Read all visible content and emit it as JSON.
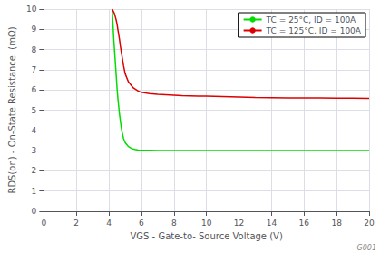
{
  "chart_data": {
    "type": "line",
    "x_label": "VGS - Gate-to- Source Voltage (V)",
    "y_label": "RDS(on) - On-State Resistance  (mΩ)",
    "annotations": [
      "G001"
    ],
    "xlim": [
      0,
      20
    ],
    "ylim": [
      0,
      10
    ],
    "xticks": [
      0,
      2,
      4,
      6,
      8,
      10,
      12,
      14,
      16,
      18,
      20
    ],
    "yticks": [
      0,
      1,
      2,
      3,
      4,
      5,
      6,
      7,
      8,
      9,
      10
    ],
    "grid": true,
    "legend": "upper right",
    "series": [
      {
        "name": "TC = 25°C, ID = 100A",
        "color": "#00dd00",
        "x": [
          4.2,
          4.3,
          4.35,
          4.4,
          4.45,
          4.5,
          4.55,
          4.6,
          4.65,
          4.7,
          4.75,
          4.8,
          4.9,
          5.0,
          5.1,
          5.2,
          5.4,
          5.6,
          5.8,
          6.0,
          6.5,
          7.0,
          7.5,
          8.0,
          9.0,
          10.0,
          11.0,
          12.0,
          13.0,
          14.0,
          15.0,
          16.0,
          17.0,
          18.0,
          19.0,
          20.0
        ],
        "values": [
          10.0,
          8.5,
          7.9,
          7.3,
          6.7,
          6.1,
          5.6,
          5.2,
          4.8,
          4.5,
          4.2,
          3.95,
          3.6,
          3.4,
          3.3,
          3.2,
          3.1,
          3.06,
          3.03,
          3.02,
          3.02,
          3.01,
          3.01,
          3.01,
          3.01,
          3.01,
          3.01,
          3.01,
          3.01,
          3.01,
          3.01,
          3.01,
          3.01,
          3.01,
          3.01,
          3.01
        ]
      },
      {
        "name": "TC = 125°C, ID = 100A",
        "color": "#dd0000",
        "x": [
          4.2,
          4.3,
          4.35,
          4.4,
          4.45,
          4.5,
          4.55,
          4.6,
          4.65,
          4.7,
          4.8,
          4.9,
          5.0,
          5.2,
          5.5,
          5.8,
          6.0,
          6.5,
          7.0,
          7.5,
          8.0,
          8.5,
          9.0,
          9.5,
          10.0,
          11.0,
          12.0,
          13.0,
          14.0,
          15.0,
          16.0,
          17.0,
          18.0,
          19.0,
          20.0
        ],
        "values": [
          10.0,
          9.85,
          9.75,
          9.6,
          9.45,
          9.25,
          9.0,
          8.75,
          8.5,
          8.2,
          7.7,
          7.2,
          6.8,
          6.4,
          6.1,
          5.95,
          5.88,
          5.82,
          5.78,
          5.76,
          5.74,
          5.72,
          5.71,
          5.7,
          5.69,
          5.67,
          5.65,
          5.63,
          5.62,
          5.61,
          5.6,
          5.6,
          5.59,
          5.59,
          5.58
        ]
      }
    ]
  }
}
